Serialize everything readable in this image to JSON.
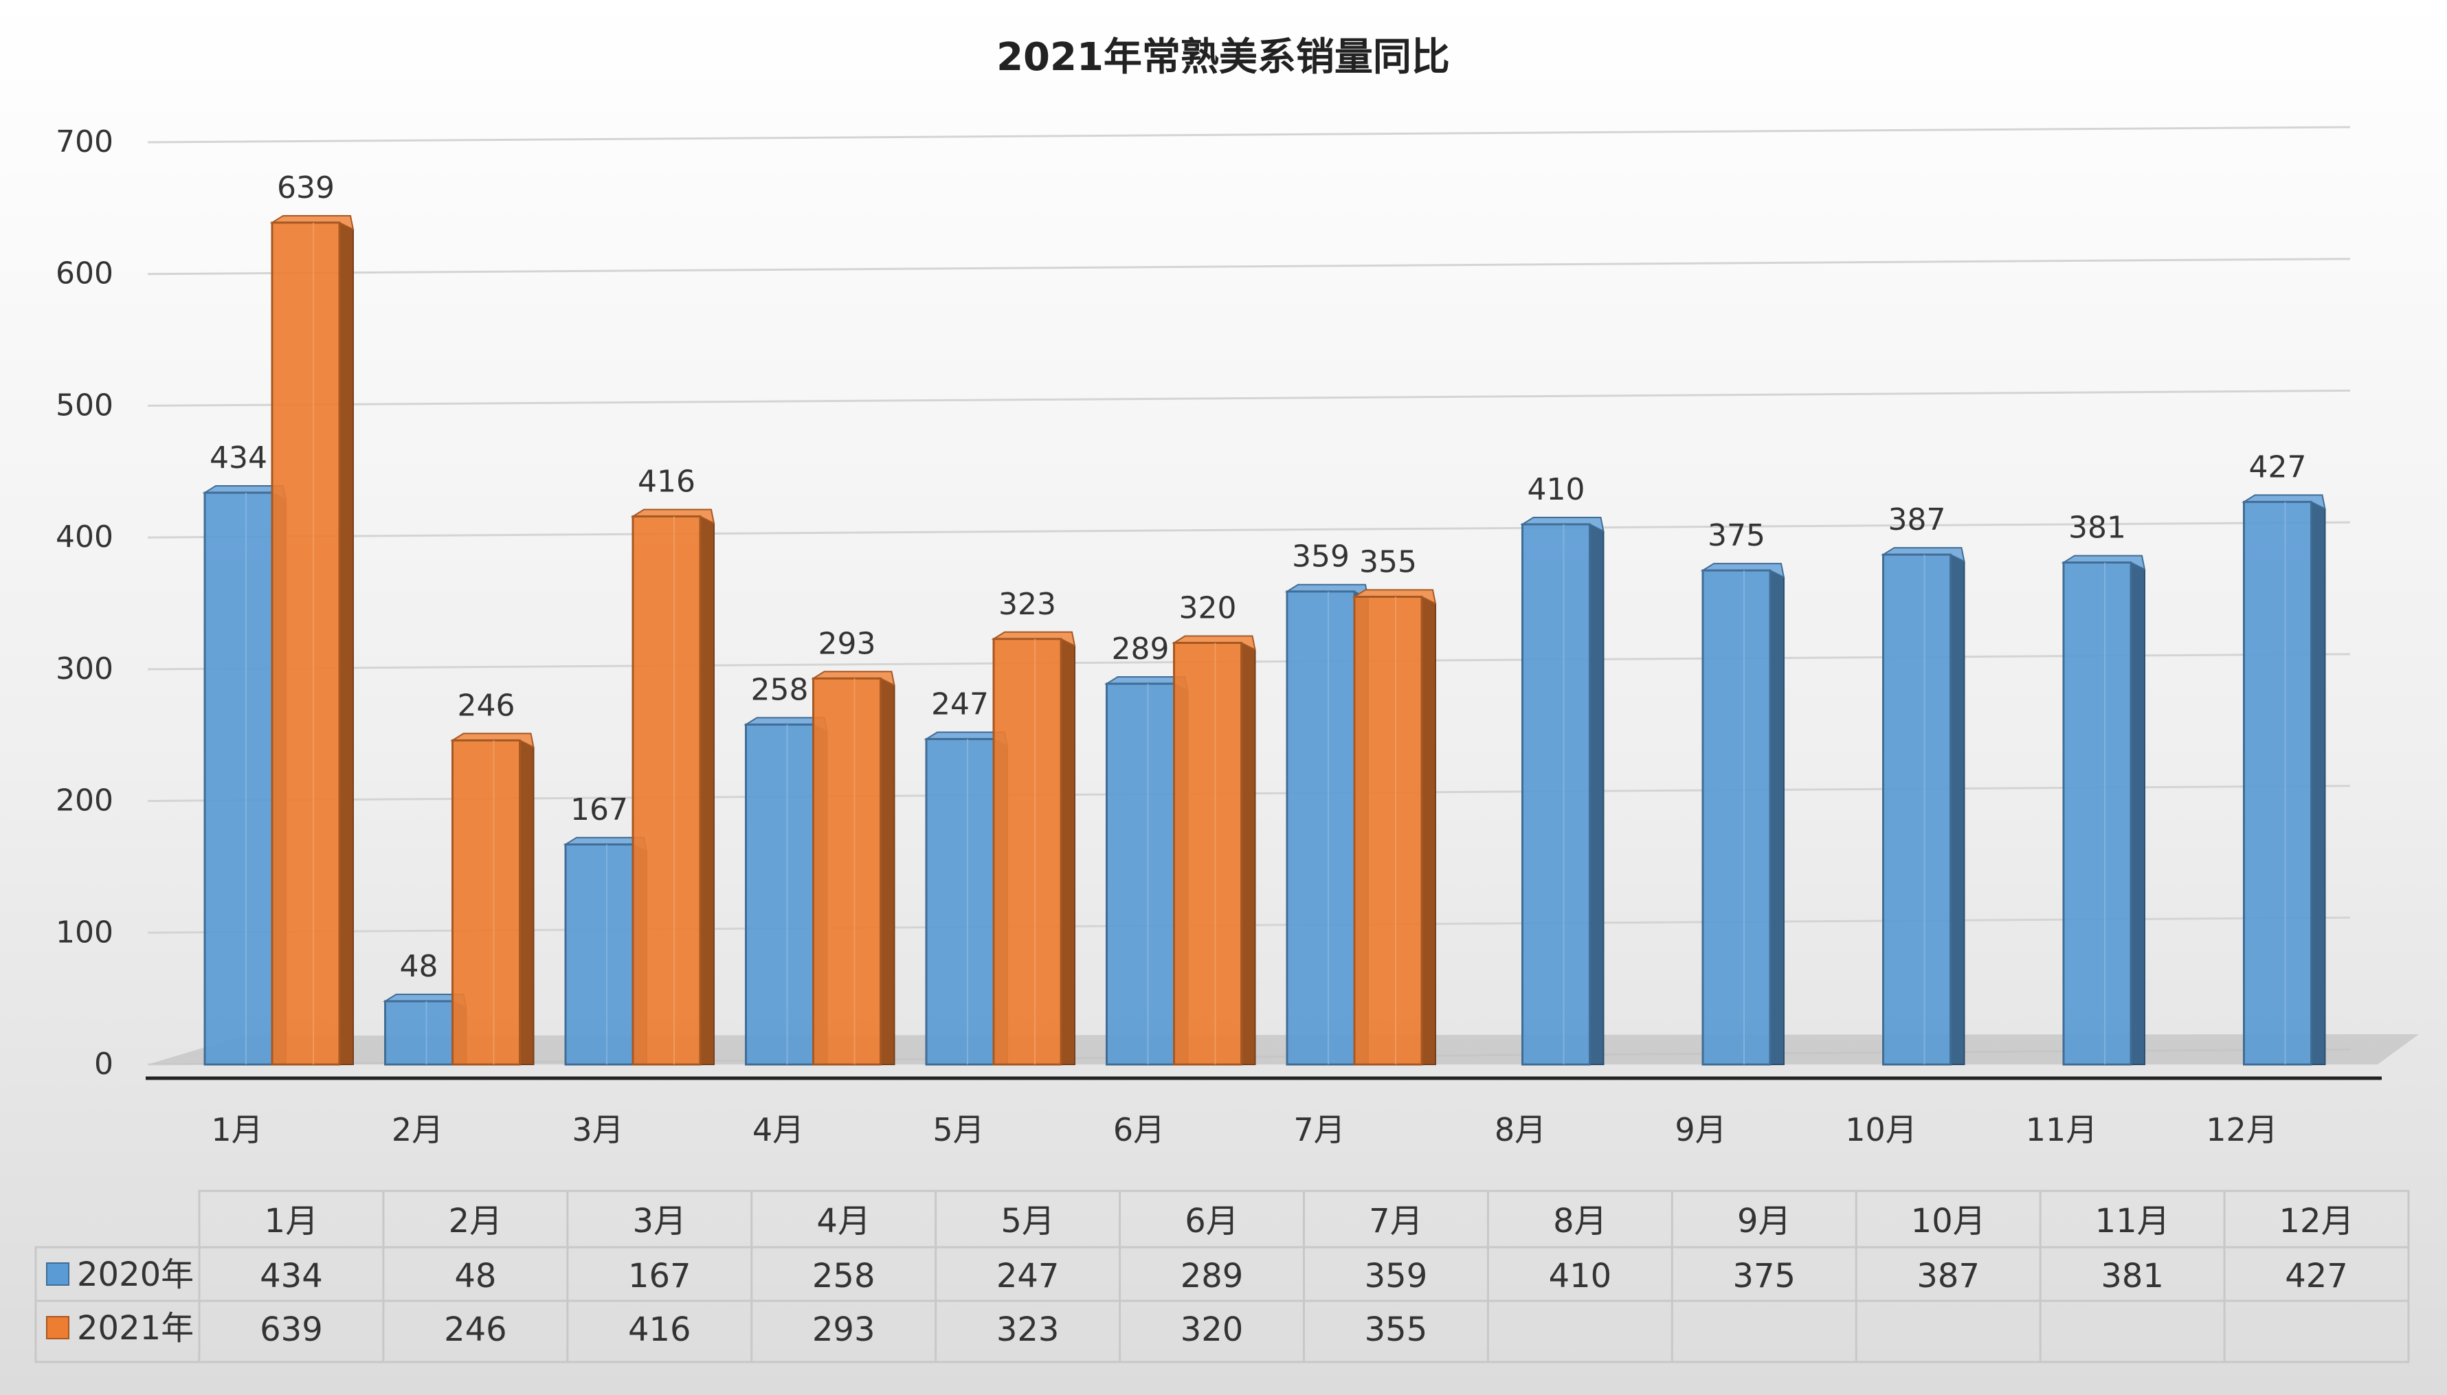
{
  "chart_data": {
    "type": "bar",
    "title": "2021年常熟美系销量同比",
    "categories": [
      "1月",
      "2月",
      "3月",
      "4月",
      "5月",
      "6月",
      "7月",
      "8月",
      "9月",
      "10月",
      "11月",
      "12月"
    ],
    "series": [
      {
        "name": "2020年",
        "values": [
          434,
          48,
          167,
          258,
          247,
          289,
          359,
          410,
          375,
          387,
          381,
          427
        ],
        "color": "#5b9bd5"
      },
      {
        "name": "2021年",
        "values": [
          639,
          246,
          416,
          293,
          323,
          320,
          355,
          null,
          null,
          null,
          null,
          null
        ],
        "color": "#ed7d31"
      }
    ],
    "ylim": [
      0,
      700
    ],
    "yticks": [
      0,
      100,
      200,
      300,
      400,
      500,
      600,
      700
    ],
    "grid": true,
    "legend": "data-table"
  },
  "colors": {
    "series_2020": "#5b9bd5",
    "series_2021": "#ed7d31"
  }
}
